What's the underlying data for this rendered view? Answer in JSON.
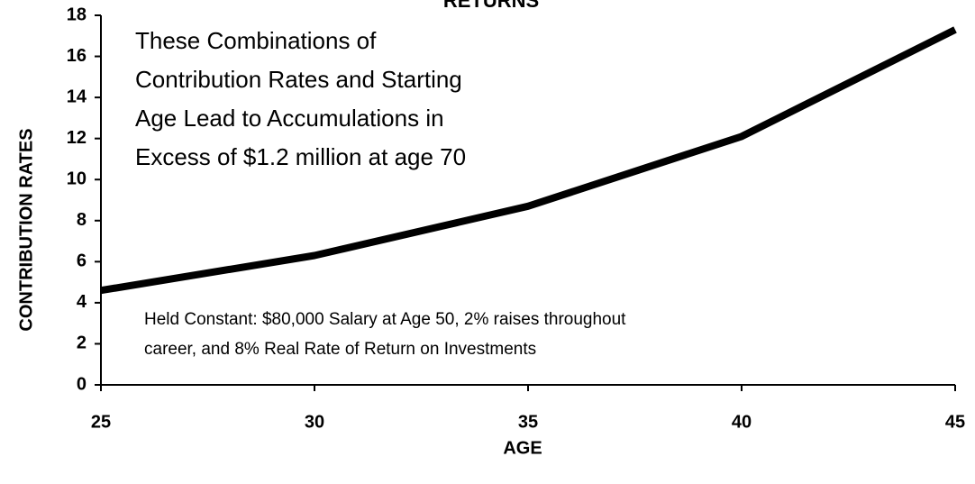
{
  "chart_data": {
    "type": "line",
    "title": "RETURNS",
    "x": [
      25,
      30,
      35,
      40,
      45
    ],
    "series": [
      {
        "color": "#000000",
        "values": [
          4.6,
          6.3,
          8.7,
          12.1,
          17.3
        ]
      }
    ],
    "xlim": [
      25,
      45
    ],
    "xticks": [
      25,
      30,
      35,
      40,
      45
    ],
    "ylim": [
      0,
      18
    ],
    "yticks": [
      0,
      2,
      4,
      6,
      8,
      10,
      12,
      14,
      16,
      18
    ],
    "xlabel": "AGE",
    "ylabel": "CONTRIBUTION RATES",
    "annotations": [
      [
        "These Combinations of",
        "Contribution Rates and Starting",
        "Age Lead to Accumulations in",
        "Excess of $1.2 million at age 70"
      ],
      [
        "Held Constant: $80,000 Salary at Age 50, 2% raises throughout",
        "career, and 8% Real Rate of Return on Investments"
      ]
    ]
  }
}
